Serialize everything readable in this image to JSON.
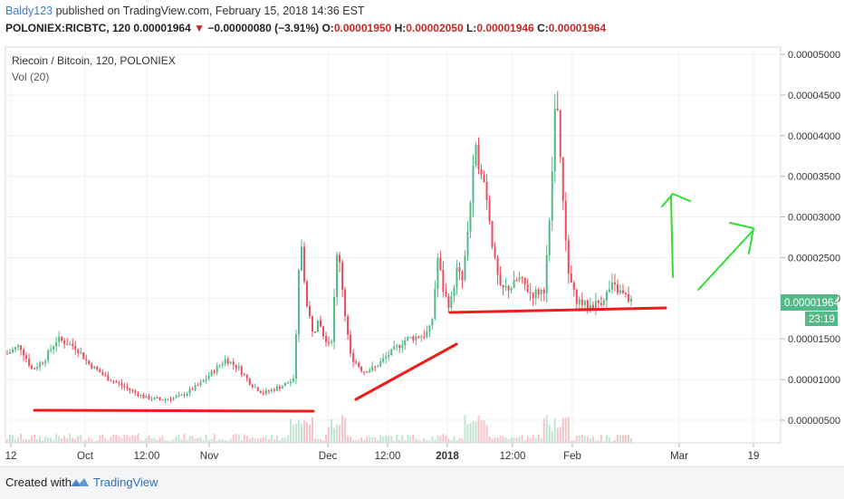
{
  "header": {
    "author": "Baldy123",
    "published_text": "published on TradingView.com, February 15, 2018 14:36 EST",
    "symbol": "POLONIEX:RICBTC, 120",
    "last": "0.00001964",
    "change": "−0.00000080 (−3.91%)",
    "o_label": "O:",
    "o": "0.00001950",
    "h_label": "H:",
    "h": "0.00002050",
    "l_label": "L:",
    "l": "0.00001946",
    "c_label": "C:",
    "c": "0.00001964"
  },
  "legend": {
    "title": "Riecoin / Bitcoin, 120, POLONIEX",
    "volume": "Vol (20)"
  },
  "price_badge": {
    "price": "0.00001964",
    "countdown": "23:19"
  },
  "colors": {
    "up": "#53b987",
    "down": "#eb4d5c",
    "annotation_red": "#ee1c1c",
    "annotation_green": "#33dd33",
    "badge": "#53b987",
    "link": "#3a7bd5"
  },
  "chart_data": {
    "type": "candlestick",
    "title": "Riecoin / Bitcoin, 120, POLONIEX",
    "y_unit": "BTC",
    "ylim": [
      4.1e-06,
      5.2e-06
    ],
    "y_ticks": [
      "0.00000500",
      "0.00001000",
      "0.00001500",
      "0.00002000",
      "0.00002500",
      "0.00003000",
      "0.00003500",
      "0.00004000",
      "0.00004500",
      "0.00005000"
    ],
    "x_ticks": [
      "12",
      "Oct",
      "12:00",
      "Nov",
      "Dec",
      "12:00",
      "2018",
      "12:00",
      "Feb",
      "Mar",
      "19"
    ],
    "price_path": [
      {
        "t": 0.0,
        "p": 1.32e-05
      },
      {
        "t": 0.02,
        "p": 1.42e-05
      },
      {
        "t": 0.04,
        "p": 1.12e-05
      },
      {
        "t": 0.06,
        "p": 1.25e-05
      },
      {
        "t": 0.08,
        "p": 1.5e-05
      },
      {
        "t": 0.11,
        "p": 1.4e-05
      },
      {
        "t": 0.13,
        "p": 1.2e-05
      },
      {
        "t": 0.16,
        "p": 1.02e-05
      },
      {
        "t": 0.19,
        "p": 9e-06
      },
      {
        "t": 0.22,
        "p": 7.8e-06
      },
      {
        "t": 0.25,
        "p": 7.5e-06
      },
      {
        "t": 0.28,
        "p": 8e-06
      },
      {
        "t": 0.31,
        "p": 9.5e-06
      },
      {
        "t": 0.33,
        "p": 1.1e-05
      },
      {
        "t": 0.35,
        "p": 1.25e-05
      },
      {
        "t": 0.37,
        "p": 1.15e-05
      },
      {
        "t": 0.39,
        "p": 9.5e-06
      },
      {
        "t": 0.41,
        "p": 8.3e-06
      },
      {
        "t": 0.44,
        "p": 9.2e-06
      },
      {
        "t": 0.46,
        "p": 1e-05
      },
      {
        "t": 0.47,
        "p": 2.8e-05
      },
      {
        "t": 0.48,
        "p": 1.9e-05
      },
      {
        "t": 0.49,
        "p": 1.6e-05
      },
      {
        "t": 0.5,
        "p": 1.7e-05
      },
      {
        "t": 0.51,
        "p": 1.45e-05
      },
      {
        "t": 0.52,
        "p": 1.5e-05
      },
      {
        "t": 0.53,
        "p": 2.7e-05
      },
      {
        "t": 0.54,
        "p": 1.9e-05
      },
      {
        "t": 0.55,
        "p": 1.3e-05
      },
      {
        "t": 0.57,
        "p": 1.1e-05
      },
      {
        "t": 0.59,
        "p": 1.15e-05
      },
      {
        "t": 0.61,
        "p": 1.3e-05
      },
      {
        "t": 0.64,
        "p": 1.5e-05
      },
      {
        "t": 0.67,
        "p": 1.55e-05
      },
      {
        "t": 0.68,
        "p": 1.65e-05
      },
      {
        "t": 0.69,
        "p": 2.5e-05
      },
      {
        "t": 0.7,
        "p": 2.05e-05
      },
      {
        "t": 0.71,
        "p": 1.9e-05
      },
      {
        "t": 0.72,
        "p": 2.35e-05
      },
      {
        "t": 0.73,
        "p": 2.2e-05
      },
      {
        "t": 0.74,
        "p": 3e-05
      },
      {
        "t": 0.75,
        "p": 3.8e-05
      },
      {
        "t": 0.76,
        "p": 3.6e-05
      },
      {
        "t": 0.77,
        "p": 3.2e-05
      },
      {
        "t": 0.78,
        "p": 2.5e-05
      },
      {
        "t": 0.79,
        "p": 2.1e-05
      },
      {
        "t": 0.81,
        "p": 2.15e-05
      },
      {
        "t": 0.82,
        "p": 2.25e-05
      },
      {
        "t": 0.84,
        "p": 2.05e-05
      },
      {
        "t": 0.86,
        "p": 2.1e-05
      },
      {
        "t": 0.87,
        "p": 3e-05
      },
      {
        "t": 0.88,
        "p": 4.7e-05
      },
      {
        "t": 0.89,
        "p": 3.2e-05
      },
      {
        "t": 0.9,
        "p": 2.3e-05
      },
      {
        "t": 0.91,
        "p": 2e-05
      },
      {
        "t": 0.93,
        "p": 1.9e-05
      },
      {
        "t": 0.95,
        "p": 1.95e-05
      },
      {
        "t": 0.97,
        "p": 2.15e-05
      },
      {
        "t": 1.0,
        "p": 1.96e-05
      }
    ],
    "annotations": [
      {
        "name": "support-line-1",
        "color": "red",
        "from": {
          "x": "Sep 14",
          "y": 6.4e-06
        },
        "to": {
          "x": "Nov 28",
          "y": 6.2e-06
        }
      },
      {
        "name": "rising-trendline",
        "color": "red",
        "from": {
          "x": "Dec 6",
          "y": 8.5e-06
        },
        "to": {
          "x": "Jan 1",
          "y": 1.43e-05
        }
      },
      {
        "name": "support-line-2",
        "color": "red",
        "from": {
          "x": "Jan 1",
          "y": 1.85e-05
        },
        "to": {
          "x": "Feb 22",
          "y": 1.88e-05
        }
      }
    ]
  }
}
